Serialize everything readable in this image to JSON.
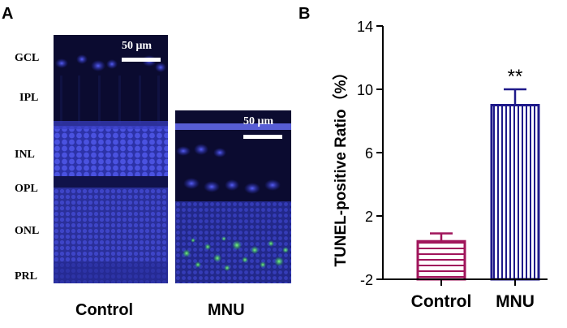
{
  "panel_a": {
    "letter": "A",
    "layer_labels": [
      "GCL",
      "IPL",
      "INL",
      "OPL",
      "ONL",
      "PRL"
    ],
    "scale_bar_label": "50 μm",
    "captions": [
      "Control",
      "MNU"
    ]
  },
  "panel_b": {
    "letter": "B"
  },
  "chart_data": {
    "type": "bar",
    "categories": [
      "Control",
      "MNU"
    ],
    "values": [
      0.4,
      9.0
    ],
    "errors": [
      0.5,
      1.0
    ],
    "significance": [
      "",
      "**"
    ],
    "ylabel": "TUNEL-positive Ratio（%）",
    "ylim": [
      -2,
      14
    ],
    "yticks": [
      -2,
      2,
      6,
      10,
      14
    ],
    "colors": [
      "#a0155b",
      "#1f1a8a"
    ],
    "patterns": [
      "horizontal",
      "vertical"
    ],
    "grid": false
  }
}
